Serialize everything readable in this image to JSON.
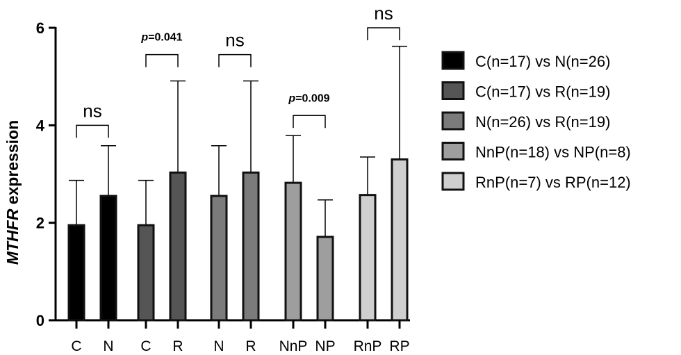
{
  "chart_data": {
    "type": "bar",
    "ylabel_italic": "MTHFR",
    "ylabel_rest": " expression",
    "ylim": [
      0,
      6
    ],
    "yticks": [
      0,
      2,
      4,
      6
    ],
    "grid": false,
    "legend_position": "right",
    "groups": [
      {
        "name": "C(n=17) vs N(n=26)",
        "color": "#000000",
        "bars": [
          {
            "label": "C",
            "value": 1.95,
            "err": 0.92
          },
          {
            "label": "N",
            "value": 2.55,
            "err": 1.03
          }
        ],
        "sig": {
          "kind": "ns",
          "text": "ns",
          "level": 4.0
        }
      },
      {
        "name": "C(n=17) vs R(n=19)",
        "color": "#555555",
        "bars": [
          {
            "label": "C",
            "value": 1.95,
            "err": 0.92
          },
          {
            "label": "R",
            "value": 3.03,
            "err": 1.88
          }
        ],
        "sig": {
          "kind": "p",
          "p_prefix": "p",
          "p_value": "=0.041",
          "level": 5.45
        }
      },
      {
        "name": "N(n=26) vs R(n=19)",
        "color": "#7b7b7b",
        "bars": [
          {
            "label": "N",
            "value": 2.55,
            "err": 1.03
          },
          {
            "label": "R",
            "value": 3.03,
            "err": 1.88
          }
        ],
        "sig": {
          "kind": "ns",
          "text": "ns",
          "level": 5.45
        }
      },
      {
        "name": "NnP(n=18) vs NP(n=8)",
        "color": "#9e9e9e",
        "bars": [
          {
            "label": "NnP",
            "value": 2.82,
            "err": 0.97
          },
          {
            "label": "NP",
            "value": 1.71,
            "err": 0.76
          }
        ],
        "sig": {
          "kind": "p",
          "p_prefix": "p",
          "p_value": "=0.009",
          "level": 4.2
        }
      },
      {
        "name": "RnP(n=7) vs RP(n=12)",
        "color": "#cfcfcf",
        "bars": [
          {
            "label": "RnP",
            "value": 2.57,
            "err": 0.78
          },
          {
            "label": "RP",
            "value": 3.3,
            "err": 2.32
          }
        ],
        "sig": {
          "kind": "ns",
          "text": "ns",
          "level": 6.0
        }
      }
    ]
  }
}
